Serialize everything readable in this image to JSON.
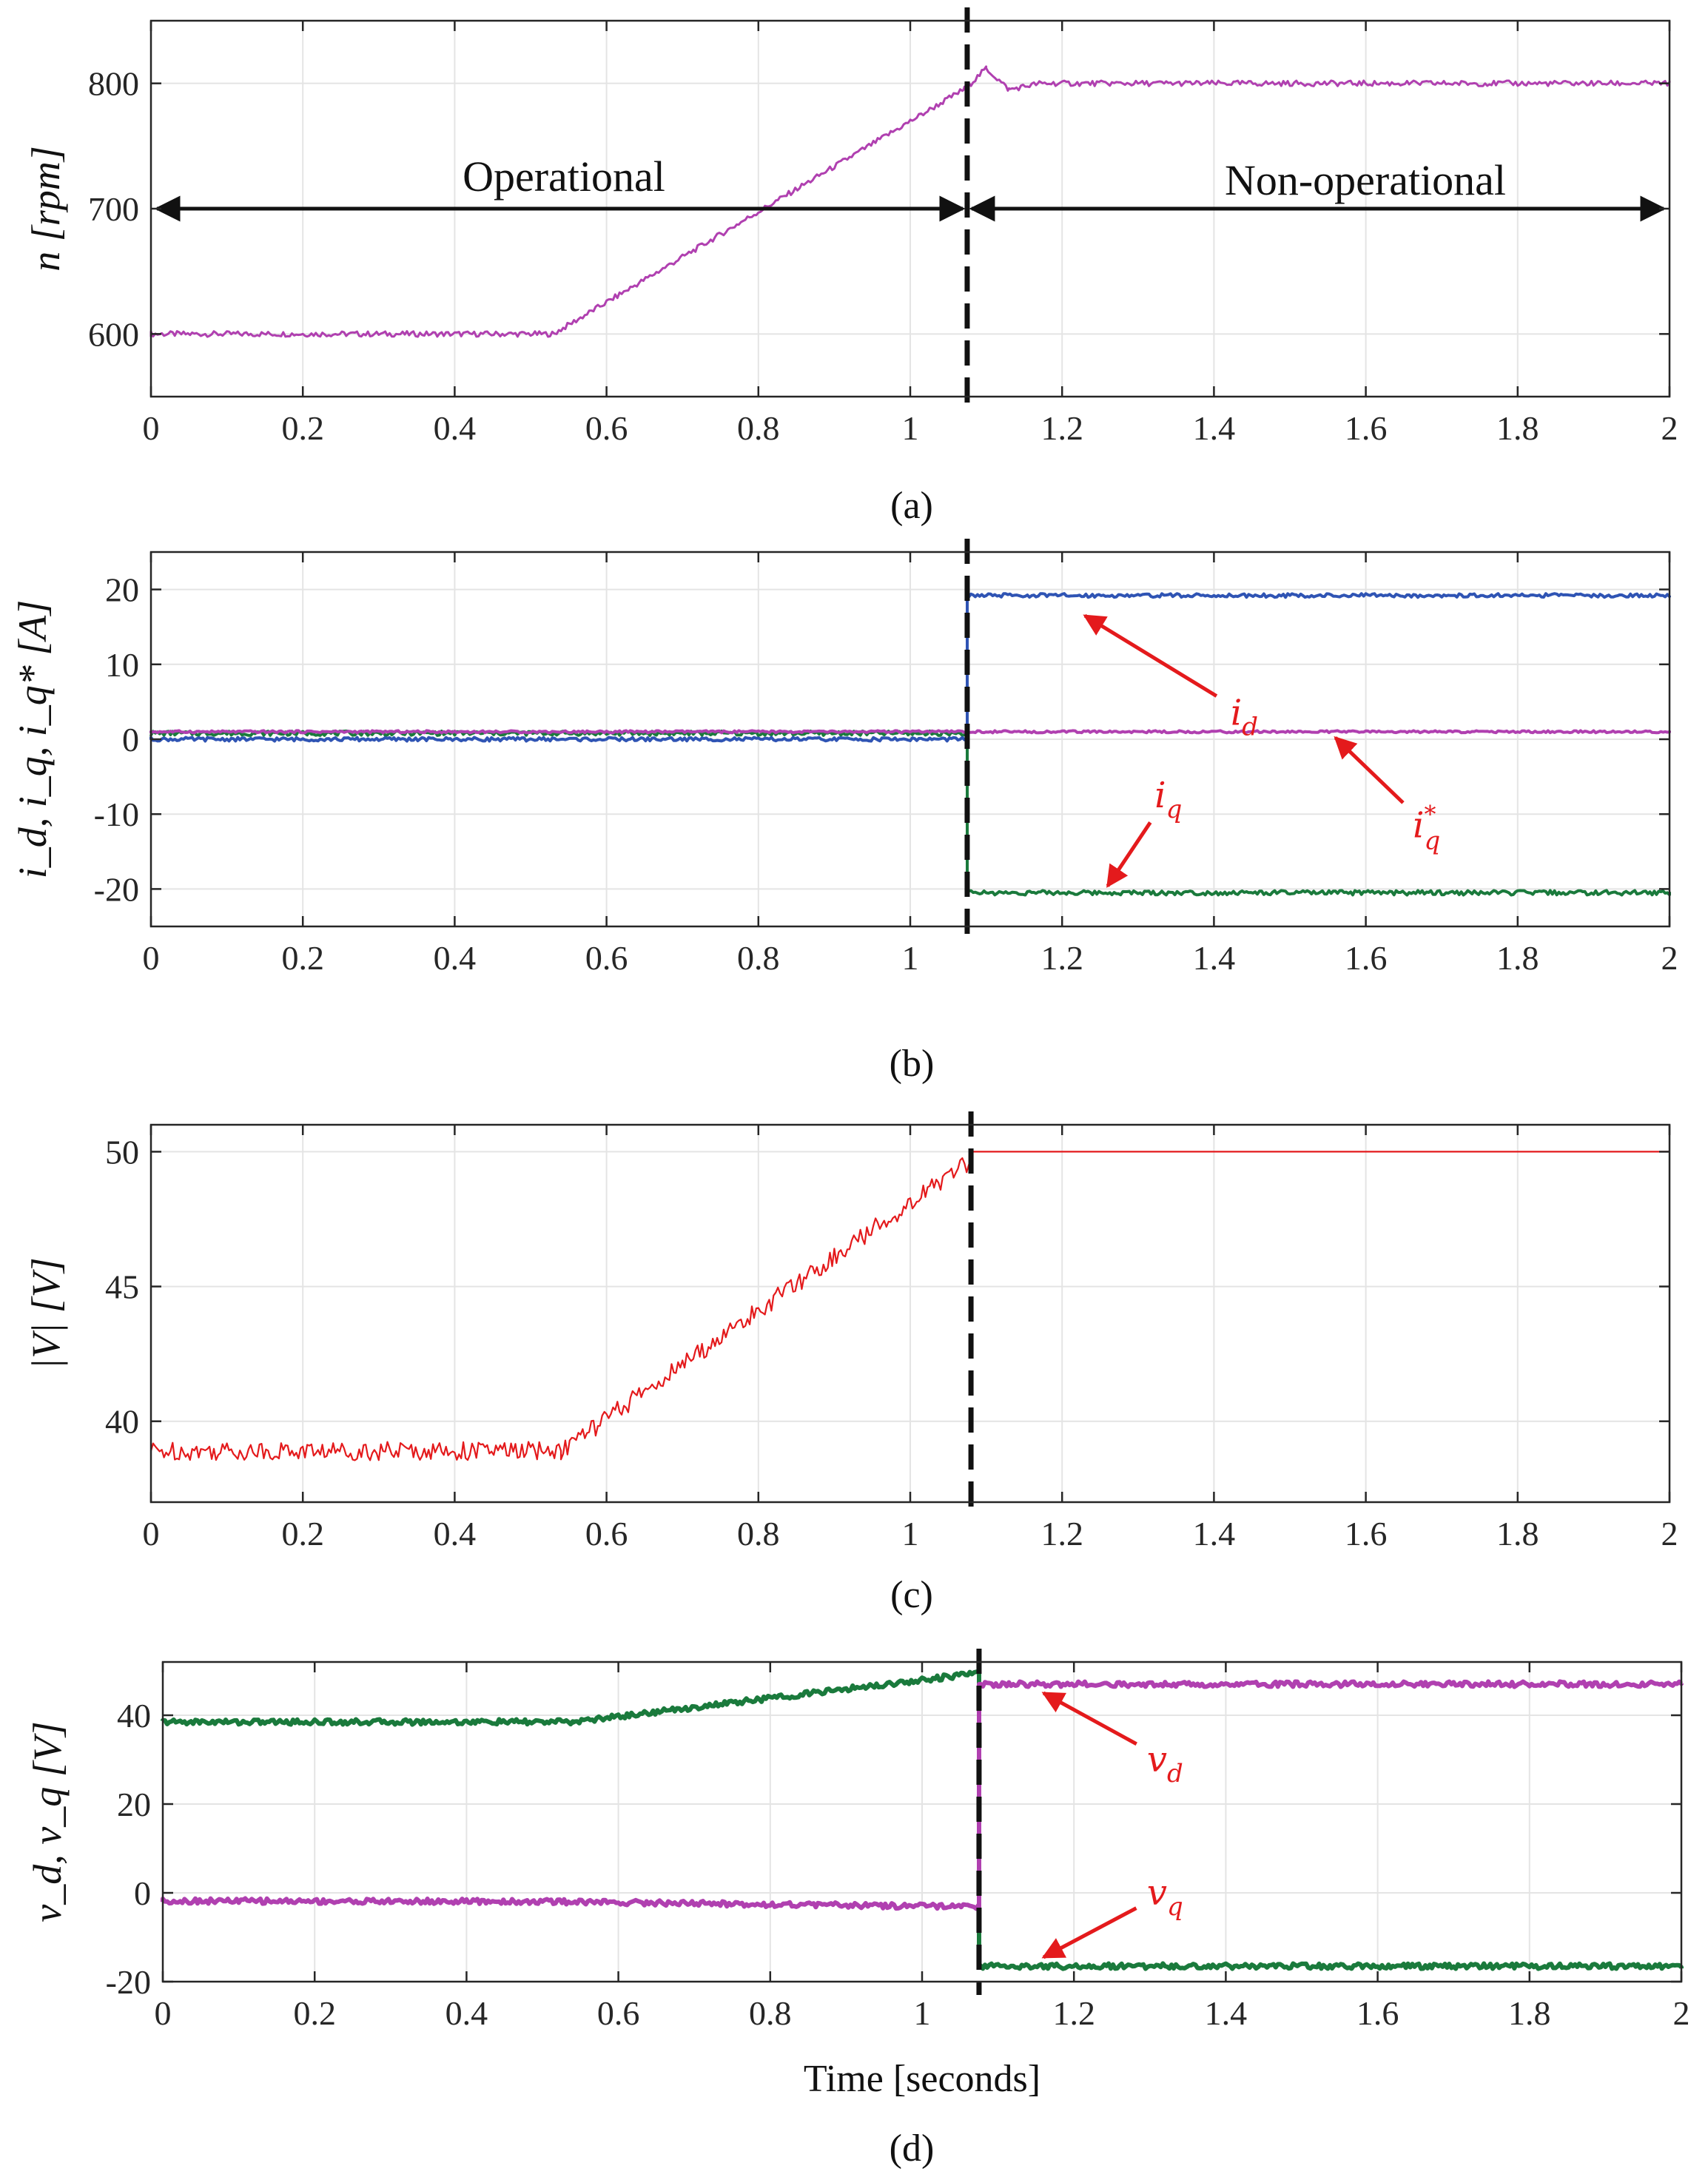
{
  "colors": {
    "purple": "#b040b0",
    "blue": "#2f54b4",
    "green": "#1a7a3c",
    "red": "#e41a1c",
    "annotation": "#e41a1c",
    "divider": "#111111"
  },
  "chart_data": [
    {
      "id": "a",
      "type": "line",
      "caption": "(a)",
      "ylabel": "n [rpm]",
      "xlabel": "",
      "xlim": [
        0,
        2
      ],
      "ylim": [
        550,
        850
      ],
      "xticks": [
        "0",
        "0.2",
        "0.4",
        "0.6",
        "0.8",
        "1",
        "1.2",
        "1.4",
        "1.6",
        "1.8",
        "2"
      ],
      "yticks": [
        "600",
        "700",
        "800"
      ],
      "yticks_values": [
        600,
        700,
        800
      ],
      "grid": true,
      "divider_x": 1.075,
      "regions": [
        {
          "label": "Operational",
          "from": 0,
          "to": 1.075
        },
        {
          "label": "Non-operational",
          "from": 1.075,
          "to": 2
        }
      ],
      "series": [
        {
          "name": "n",
          "color": "#b040b0",
          "x": [
            0,
            0.53,
            1.07,
            1.08,
            1.1,
            1.13,
            1.17,
            2
          ],
          "y": [
            600,
            600,
            795,
            800,
            812,
            795,
            800,
            800
          ]
        }
      ]
    },
    {
      "id": "b",
      "type": "line",
      "caption": "(b)",
      "ylabel": "i_d, i_q, i_q* [A]",
      "xlabel": "",
      "xlim": [
        0,
        2
      ],
      "ylim": [
        -25,
        25
      ],
      "xticks": [
        "0",
        "0.2",
        "0.4",
        "0.6",
        "0.8",
        "1",
        "1.2",
        "1.4",
        "1.6",
        "1.8",
        "2"
      ],
      "yticks": [
        "-20",
        "-10",
        "0",
        "10",
        "20"
      ],
      "yticks_values": [
        -20,
        -10,
        0,
        10,
        20
      ],
      "grid": true,
      "divider_x": 1.075,
      "series": [
        {
          "name": "i_q",
          "color": "#1a7a3c",
          "x": [
            0,
            1.075,
            1.075,
            2
          ],
          "y": [
            0.8,
            0.8,
            -20.5,
            -20.5
          ]
        },
        {
          "name": "i_d",
          "color": "#2f54b4",
          "x": [
            0,
            1.075,
            1.075,
            2
          ],
          "y": [
            0,
            0,
            19.2,
            19.2
          ]
        },
        {
          "name": "i_q*",
          "color": "#b040b0",
          "x": [
            0,
            2
          ],
          "y": [
            1,
            1
          ]
        }
      ],
      "annotations": [
        {
          "label": "i",
          "sub": "d",
          "sup": "",
          "value_x": 1.23,
          "value_y": 16.5,
          "text_x": 1.44,
          "text_y": 3.5
        },
        {
          "label": "i",
          "sub": "q",
          "sup": "*",
          "value_x": 1.56,
          "value_y": 0.2,
          "text_x": 1.68,
          "text_y": -11.5
        },
        {
          "label": "i",
          "sub": "q",
          "sup": "",
          "value_x": 1.26,
          "value_y": -19.6,
          "text_x": 1.34,
          "text_y": -7.5
        }
      ]
    },
    {
      "id": "c",
      "type": "line",
      "caption": "(c)",
      "ylabel": "|V| [V]",
      "xlabel": "",
      "xlim": [
        0,
        2
      ],
      "ylim": [
        37,
        51
      ],
      "xticks": [
        "0",
        "0.2",
        "0.4",
        "0.6",
        "0.8",
        "1",
        "1.2",
        "1.4",
        "1.6",
        "1.8",
        "2"
      ],
      "yticks": [
        "40",
        "45",
        "50"
      ],
      "yticks_values": [
        40,
        45,
        50
      ],
      "grid": true,
      "divider_x": 1.08,
      "series": [
        {
          "name": "|V|",
          "color": "#e41a1c",
          "x": [
            0,
            0.54,
            1.08,
            1.08,
            2
          ],
          "y": [
            38.9,
            38.9,
            49.7,
            50,
            50
          ]
        }
      ]
    },
    {
      "id": "d",
      "type": "line",
      "caption": "(d)",
      "ylabel": "v_d, v_q [V]",
      "xlabel": "Time [seconds]",
      "xlim": [
        0,
        2
      ],
      "ylim": [
        -20,
        52
      ],
      "xticks": [
        "0",
        "0.2",
        "0.4",
        "0.6",
        "0.8",
        "1",
        "1.2",
        "1.4",
        "1.6",
        "1.8",
        "2"
      ],
      "yticks": [
        "-20",
        "0",
        "20",
        "40"
      ],
      "yticks_values": [
        -20,
        0,
        20,
        40
      ],
      "grid": true,
      "divider_x": 1.075,
      "series": [
        {
          "name": "v_q",
          "color": "#1a7a3c",
          "x": [
            0,
            0.54,
            1.075,
            1.075,
            2
          ],
          "y": [
            38.5,
            38.5,
            49.5,
            -16.5,
            -16.5
          ]
        },
        {
          "name": "v_d",
          "color": "#b040b0",
          "x": [
            0,
            0.54,
            1.075,
            1.075,
            2
          ],
          "y": [
            -1.8,
            -2,
            -3.2,
            47,
            47
          ]
        }
      ],
      "annotations": [
        {
          "label": "v",
          "sub": "d",
          "sup": "",
          "value_x": 1.16,
          "value_y": 45,
          "text_x": 1.32,
          "text_y": 30
        },
        {
          "label": "v",
          "sub": "q",
          "sup": "",
          "value_x": 1.16,
          "value_y": -14.5,
          "text_x": 1.32,
          "text_y": 0
        }
      ]
    }
  ]
}
